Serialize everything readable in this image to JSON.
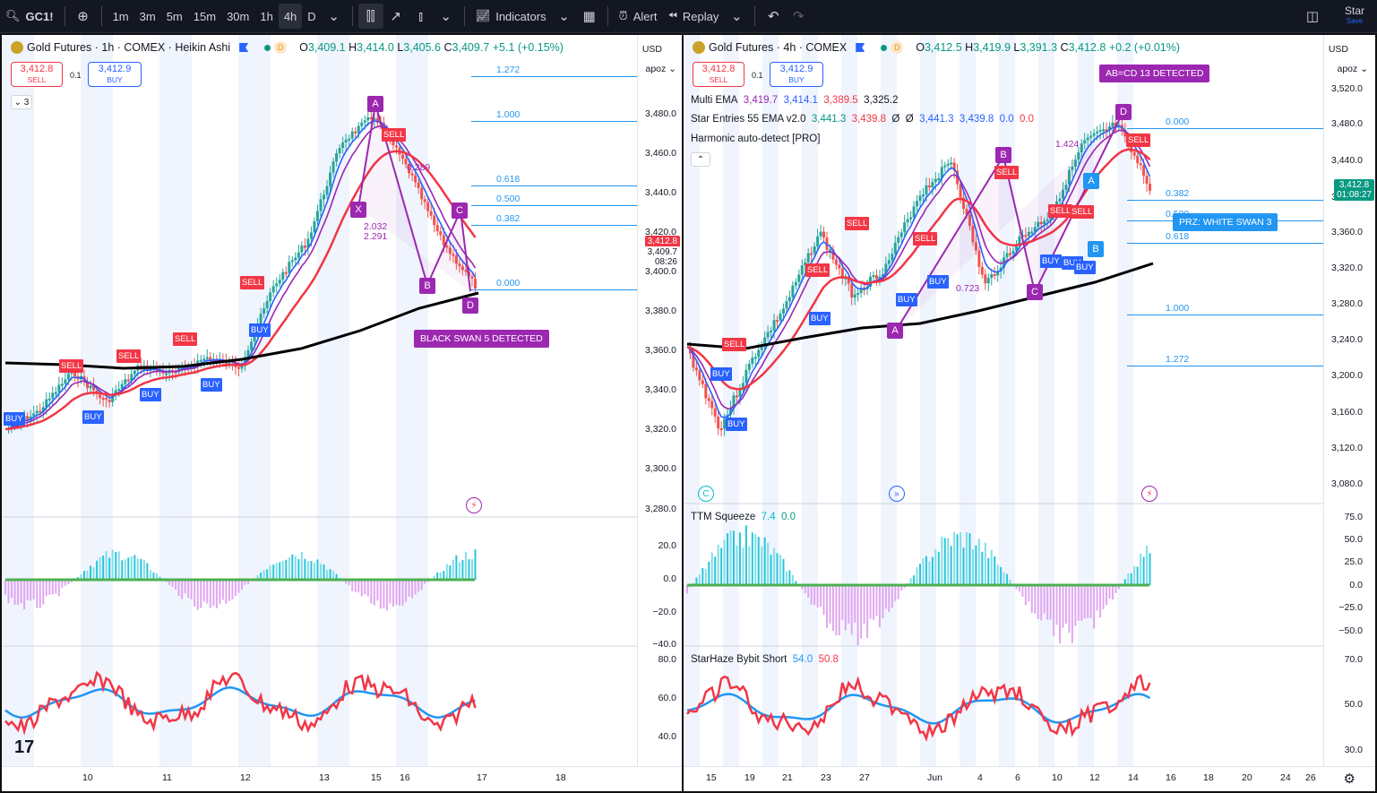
{
  "toolbar": {
    "symbol": "GC1!",
    "intervals": [
      "1m",
      "3m",
      "5m",
      "15m",
      "30m",
      "1h",
      "4h",
      "D"
    ],
    "active_interval": "4h",
    "indicators_label": "Indicators",
    "alert_label": "Alert",
    "replay_label": "Replay",
    "user_name": "Star",
    "save_label": "Save"
  },
  "left": {
    "title": "Gold Futures · 1h · COMEX · Heikin Ashi",
    "ohlc": {
      "o": "3,409.1",
      "h": "3,414.0",
      "l": "3,405.6",
      "c": "3,409.7",
      "chg": "+5.1 (+0.15%)"
    },
    "sell_price": "3,412.8",
    "sell_label": "SELL",
    "buy_price": "3,412.9",
    "buy_label": "BUY",
    "spread": "0.1",
    "collapse_count": "3",
    "currency": "USD",
    "scale_mode": "apoz",
    "price_labels": [
      "3,480.0",
      "3,460.0",
      "3,440.0",
      "3,420.0",
      "3,400.0",
      "3,380.0",
      "3,360.0",
      "3,340.0",
      "3,320.0",
      "3,300.0",
      "3,280.0"
    ],
    "last_price": "3,412.8",
    "last_price2": "3,409.7",
    "countdown": "08:26",
    "fib_levels": [
      "1.272",
      "1.000",
      "0.618",
      "0.500",
      "0.382",
      "0.000"
    ],
    "harmonic_points": [
      "X",
      "A",
      "B",
      "C",
      "D"
    ],
    "ratios": [
      "0.289",
      "2.032",
      "2.291"
    ],
    "callout": "BLACK SWAN 5 DETECTED",
    "osc_labels": [
      "20.0",
      "0.0",
      "−20.0",
      "−40.0"
    ],
    "rsi_labels": [
      "80.0",
      "60.0",
      "40.0"
    ],
    "x_labels": [
      "10",
      "11",
      "12",
      "13",
      "15",
      "16",
      "17",
      "18"
    ],
    "signals": {
      "sell": "SELL",
      "buy": "BUY"
    },
    "tv_logo": "17"
  },
  "right": {
    "title": "Gold Futures · 4h · COMEX",
    "ohlc": {
      "o": "3,412.5",
      "h": "3,419.9",
      "l": "3,391.3",
      "c": "3,412.8",
      "chg": "+0.2 (+0.01%)"
    },
    "sell_price": "3,412.8",
    "sell_label": "SELL",
    "buy_price": "3,412.9",
    "buy_label": "BUY",
    "spread": "0.1",
    "multi_ema": {
      "name": "Multi EMA",
      "v1": "3,419.7",
      "v2": "3,414.1",
      "v3": "3,389.5",
      "v4": "3,325.2"
    },
    "star_entries": {
      "name": "Star Entries 55 EMA v2.0",
      "v1": "3,441.3",
      "v2": "3,439.8",
      "v3": "Ø",
      "v4": "Ø",
      "v5": "3,441.3",
      "v6": "3,439.8",
      "v7": "0.0",
      "v8": "0.0"
    },
    "harmonic": "Harmonic auto-detect [PRO]",
    "currency": "USD",
    "scale_mode": "apoz",
    "price_labels": [
      "3,520.0",
      "3,480.0",
      "3,440.0",
      "3,400.0",
      "3,360.0",
      "3,320.0",
      "3,280.0",
      "3,240.0",
      "3,200.0",
      "3,160.0",
      "3,120.0",
      "3,080.0"
    ],
    "last_price": "3,412.8",
    "countdown": "01:08:27",
    "fib_levels": [
      "0.000",
      "0.382",
      "0.500",
      "0.618",
      "1.000",
      "1.272"
    ],
    "harmonic_points": [
      "A",
      "B",
      "C",
      "D"
    ],
    "ratios": [
      "1.424",
      "0.723"
    ],
    "callout": "AB=CD 13 DETECTED",
    "prz": "PRZ: WHITE SWAN 3",
    "ttm": {
      "name": "TTM Squeeze",
      "v1": "7.4",
      "v2": "0.0"
    },
    "ttm_labels": [
      "75.0",
      "50.0",
      "25.0",
      "0.0",
      "−25.0",
      "−50.0"
    ],
    "starhaze": {
      "name": "StarHaze Bybit Short",
      "v1": "54.0",
      "v2": "50.8"
    },
    "haze_labels": [
      "70.0",
      "50.0",
      "30.0"
    ],
    "x_labels": [
      "15",
      "19",
      "21",
      "23",
      "27",
      "Jun",
      "4",
      "6",
      "10",
      "12",
      "14",
      "16",
      "18",
      "20",
      "24",
      "26"
    ],
    "signals": {
      "sell": "SELL",
      "buy": "BUY"
    }
  }
}
